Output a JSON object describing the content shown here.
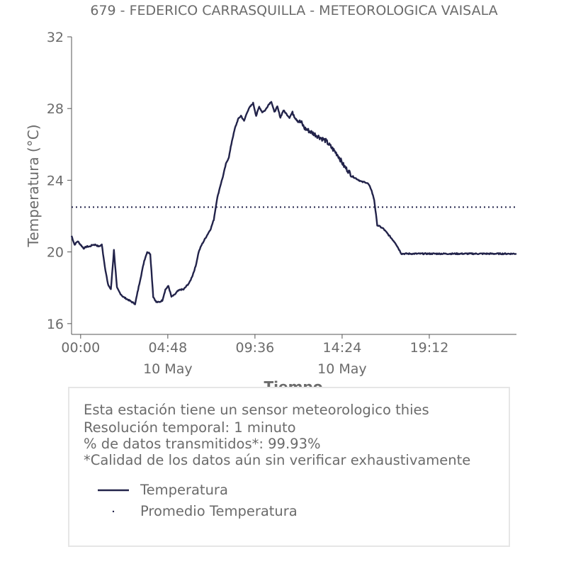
{
  "chart_data": {
    "type": "line",
    "title": "679 - FEDERICO CARRASQUILLA - METEOROLOGICA VAISALA",
    "xlabel": "Tiempo",
    "ylabel": "Temperatura (°C)",
    "ylim": [
      15.4,
      32
    ],
    "xlim": [
      -30,
      1440
    ],
    "x_unit": "minutes since 10 May 00:00",
    "yticks": [
      "16",
      "20",
      "24",
      "28",
      "32"
    ],
    "xticks": [
      {
        "x": 0,
        "time": "00:00",
        "date": ""
      },
      {
        "x": 288,
        "time": "04:48",
        "date": "10 May"
      },
      {
        "x": 576,
        "time": "09:36",
        "date": ""
      },
      {
        "x": 864,
        "time": "14:24",
        "date": "10 May"
      },
      {
        "x": 1152,
        "time": "19:12",
        "date": ""
      }
    ],
    "grid": false,
    "series": [
      {
        "name": "Temperatura",
        "color": "#22234a",
        "style": "solid",
        "x": [
          -30,
          -20,
          -10,
          0,
          10,
          20,
          30,
          40,
          50,
          60,
          70,
          80,
          90,
          100,
          110,
          120,
          130,
          140,
          150,
          160,
          170,
          180,
          190,
          200,
          210,
          220,
          230,
          240,
          250,
          260,
          270,
          280,
          290,
          300,
          310,
          320,
          330,
          340,
          350,
          360,
          370,
          380,
          390,
          400,
          410,
          420,
          430,
          440,
          450,
          460,
          470,
          480,
          490,
          500,
          510,
          520,
          530,
          540,
          550,
          560,
          570,
          580,
          590,
          600,
          610,
          620,
          630,
          640,
          650,
          660,
          670,
          680,
          690,
          700,
          710,
          720,
          730,
          740,
          750,
          760,
          770,
          780,
          790,
          800,
          810,
          820,
          830,
          840,
          850,
          860,
          870,
          880,
          890,
          900,
          910,
          920,
          930,
          940,
          950,
          960,
          970,
          980,
          990,
          1000,
          1010,
          1020,
          1030,
          1040,
          1050,
          1060,
          1070,
          1080,
          1090,
          1100,
          1110,
          1120,
          1130,
          1140,
          1150,
          1160,
          1170,
          1180,
          1190,
          1200,
          1210,
          1220,
          1230,
          1240,
          1250,
          1260,
          1270,
          1280,
          1290,
          1300,
          1310,
          1320,
          1330,
          1340,
          1350,
          1360,
          1370,
          1380,
          1390,
          1400,
          1410,
          1420,
          1430,
          1440
        ],
        "y": [
          20.9,
          20.4,
          20.6,
          20.4,
          20.2,
          20.3,
          20.3,
          20.4,
          20.4,
          20.3,
          20.4,
          19.2,
          18.2,
          17.9,
          20.1,
          18.0,
          17.7,
          17.5,
          17.4,
          17.3,
          17.2,
          17.1,
          17.9,
          18.7,
          19.5,
          20.0,
          19.9,
          17.5,
          17.2,
          17.2,
          17.3,
          17.9,
          18.1,
          17.5,
          17.6,
          17.8,
          17.9,
          17.9,
          18.1,
          18.3,
          18.7,
          19.2,
          20.0,
          20.4,
          20.7,
          21.0,
          21.3,
          21.8,
          22.9,
          23.6,
          24.2,
          24.9,
          25.3,
          26.2,
          26.9,
          27.4,
          27.6,
          27.3,
          27.8,
          28.1,
          28.3,
          27.6,
          28.1,
          27.8,
          27.9,
          28.2,
          28.4,
          27.8,
          28.1,
          27.5,
          27.9,
          27.7,
          27.5,
          27.8,
          27.5,
          27.3,
          27.2,
          26.9,
          26.8,
          26.7,
          26.6,
          26.5,
          26.4,
          26.3,
          26.2,
          26.0,
          25.8,
          25.6,
          25.4,
          25.1,
          24.8,
          24.6,
          24.4,
          24.2,
          24.1,
          24.0,
          23.9,
          23.9,
          23.8,
          23.5,
          22.9,
          21.5,
          21.4,
          21.3,
          21.1,
          20.9,
          20.7,
          20.5,
          20.2,
          19.9,
          19.9,
          19.9,
          19.9,
          19.9,
          19.9,
          19.9,
          19.9,
          19.9,
          19.9,
          19.9,
          19.9,
          19.9,
          19.9,
          19.9,
          19.9,
          19.9,
          19.9,
          19.9,
          19.9,
          19.9,
          19.9,
          19.9,
          19.9,
          19.9,
          19.9,
          19.9,
          19.9,
          19.9,
          19.9,
          19.9,
          19.9,
          19.9,
          19.9,
          19.9,
          19.9,
          19.9,
          19.9,
          19.9
        ]
      },
      {
        "name": "Promedio Temperatura",
        "color": "#22234a",
        "style": "dotted",
        "value": 22.5
      }
    ]
  },
  "info": {
    "line1": "Esta estación tiene un sensor meteorologico thies",
    "line2": "Resolución temporal: 1 minuto",
    "line3": "% de datos transmitidos*: 99.93%",
    "line4": "*Calidad de los datos aún sin verificar exhaustivamente"
  },
  "legend": {
    "series_label": "Temperatura",
    "average_label": "Promedio Temperatura"
  },
  "colors": {
    "series": "#22234a",
    "text": "#6b6b6b",
    "axis": "#555555",
    "box_border": "#e6e6e6"
  }
}
